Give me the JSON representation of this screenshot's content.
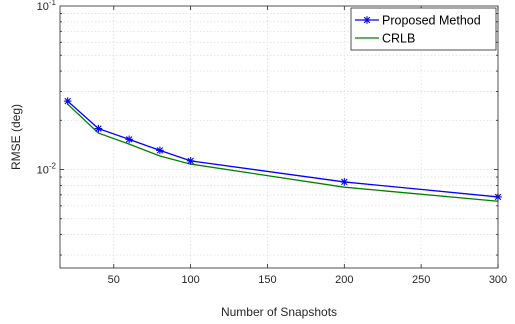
{
  "chart_data": {
    "type": "line",
    "title": "",
    "xlabel": "Number of Snapshots",
    "ylabel": "RMSE (deg)",
    "xlim": [
      15,
      300
    ],
    "ylim": [
      0.0025,
      0.1
    ],
    "yscale": "log",
    "grid": true,
    "legend_position": "top-right",
    "x_ticks": [
      50,
      100,
      150,
      200,
      250,
      300
    ],
    "x_tick_labels": [
      "50",
      "100",
      "150",
      "200",
      "250",
      "300"
    ],
    "y_ticks": [
      {
        "value": 0.1,
        "base": "10",
        "exp": "-1"
      },
      {
        "value": 0.01,
        "base": "10",
        "exp": "-2"
      }
    ],
    "series": [
      {
        "name": "Proposed Method",
        "color": "#0000ff",
        "marker": "asterisk",
        "x": [
          20,
          40,
          60,
          80,
          100,
          200,
          300
        ],
        "y": [
          0.0262,
          0.0178,
          0.0153,
          0.0131,
          0.0113,
          0.0084,
          0.0068
        ]
      },
      {
        "name": "CRLB",
        "color": "#008000",
        "marker": "none",
        "x": [
          20,
          40,
          60,
          80,
          100,
          200,
          300
        ],
        "y": [
          0.0251,
          0.0167,
          0.0143,
          0.0121,
          0.0108,
          0.0078,
          0.0064
        ]
      }
    ]
  }
}
